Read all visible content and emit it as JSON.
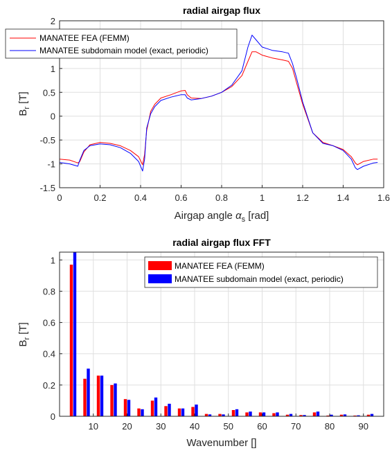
{
  "chart_data": [
    {
      "type": "line",
      "title": "radial airgap flux",
      "xlabel_main": "Airgap angle ",
      "xlabel_symbol": "α",
      "xlabel_sub": "s",
      "xlabel_unit": " [rad]",
      "ylabel_main": "B",
      "ylabel_sub": "r",
      "ylabel_unit": " [T]",
      "xlim": [
        0,
        1.6
      ],
      "ylim": [
        -1.5,
        2
      ],
      "xticks": [
        "0",
        "0.2",
        "0.4",
        "0.6",
        "0.8",
        "1",
        "1.2",
        "1.4",
        "1.6"
      ],
      "yticks": [
        "-1.5",
        "-1",
        "-0.5",
        "0",
        "0.5",
        "1",
        "1.5",
        "2"
      ],
      "grid": true,
      "legend_position": "top-left",
      "series": [
        {
          "name": "MANATEE FEA (FEMM)",
          "color": "#ff0000",
          "x": [
            0,
            0.05,
            0.09,
            0.1,
            0.12,
            0.15,
            0.2,
            0.25,
            0.3,
            0.35,
            0.39,
            0.41,
            0.42,
            0.43,
            0.45,
            0.47,
            0.5,
            0.55,
            0.6,
            0.62,
            0.63,
            0.65,
            0.7,
            0.75,
            0.8,
            0.85,
            0.9,
            0.93,
            0.95,
            0.97,
            1.0,
            1.05,
            1.1,
            1.13,
            1.15,
            1.17,
            1.2,
            1.25,
            1.3,
            1.35,
            1.4,
            1.44,
            1.46,
            1.47,
            1.5,
            1.55,
            1.57
          ],
          "y": [
            -0.9,
            -0.92,
            -0.98,
            -0.95,
            -0.75,
            -0.6,
            -0.55,
            -0.57,
            -0.62,
            -0.72,
            -0.85,
            -1.02,
            -0.8,
            -0.3,
            0.1,
            0.25,
            0.38,
            0.45,
            0.53,
            0.54,
            0.45,
            0.38,
            0.37,
            0.42,
            0.5,
            0.62,
            0.85,
            1.15,
            1.35,
            1.35,
            1.28,
            1.22,
            1.18,
            1.15,
            1.0,
            0.7,
            0.25,
            -0.35,
            -0.55,
            -0.62,
            -0.7,
            -0.85,
            -0.98,
            -1.02,
            -0.95,
            -0.9,
            -0.9
          ]
        },
        {
          "name": "MANATEE subdomain model (exact, periodic)",
          "color": "#0000ff",
          "x": [
            0,
            0.05,
            0.09,
            0.1,
            0.12,
            0.15,
            0.2,
            0.25,
            0.3,
            0.35,
            0.39,
            0.41,
            0.42,
            0.43,
            0.45,
            0.47,
            0.5,
            0.55,
            0.6,
            0.62,
            0.63,
            0.65,
            0.7,
            0.75,
            0.8,
            0.85,
            0.9,
            0.93,
            0.95,
            0.97,
            1.0,
            1.05,
            1.1,
            1.13,
            1.15,
            1.17,
            1.2,
            1.25,
            1.3,
            1.35,
            1.4,
            1.44,
            1.46,
            1.47,
            1.5,
            1.55,
            1.57
          ],
          "y": [
            -0.97,
            -1.0,
            -1.05,
            -0.92,
            -0.72,
            -0.62,
            -0.58,
            -0.6,
            -0.66,
            -0.78,
            -0.95,
            -1.15,
            -0.9,
            -0.25,
            0.05,
            0.2,
            0.33,
            0.4,
            0.45,
            0.45,
            0.38,
            0.34,
            0.37,
            0.42,
            0.5,
            0.65,
            0.95,
            1.45,
            1.7,
            1.6,
            1.45,
            1.38,
            1.35,
            1.32,
            1.1,
            0.8,
            0.3,
            -0.35,
            -0.57,
            -0.62,
            -0.72,
            -0.9,
            -1.08,
            -1.12,
            -1.05,
            -0.98,
            -0.97
          ]
        }
      ]
    },
    {
      "type": "bar",
      "title": "radial airgap flux FFT",
      "xlabel": "Wavenumber []",
      "ylabel_main": "B",
      "ylabel_sub": "r",
      "ylabel_unit": " [T]",
      "xlim": [
        0,
        96
      ],
      "ylim": [
        0,
        1.05
      ],
      "xticks": [
        "10",
        "20",
        "30",
        "40",
        "50",
        "60",
        "70",
        "80",
        "90"
      ],
      "yticks": [
        "0",
        "0.2",
        "0.4",
        "0.6",
        "0.8",
        "1"
      ],
      "grid": true,
      "legend_position": "top-right",
      "categories": [
        4,
        8,
        12,
        16,
        20,
        24,
        28,
        32,
        36,
        40,
        44,
        48,
        52,
        56,
        60,
        64,
        68,
        72,
        76,
        80,
        84,
        88,
        92
      ],
      "series": [
        {
          "name": "MANATEE FEA (FEMM)",
          "color": "#ff0000",
          "values": [
            0.97,
            0.24,
            0.26,
            0.2,
            0.11,
            0.05,
            0.1,
            0.065,
            0.05,
            0.06,
            0.015,
            0.015,
            0.04,
            0.025,
            0.025,
            0.02,
            0.01,
            0.008,
            0.025,
            0.005,
            0.01,
            0.005,
            0.01
          ]
        },
        {
          "name": "MANATEE subdomain model (exact, periodic)",
          "color": "#0000ff",
          "values": [
            1.06,
            0.305,
            0.26,
            0.21,
            0.105,
            0.045,
            0.12,
            0.08,
            0.05,
            0.075,
            0.012,
            0.012,
            0.045,
            0.03,
            0.025,
            0.025,
            0.015,
            0.008,
            0.03,
            0.01,
            0.012,
            0.006,
            0.015
          ]
        }
      ]
    }
  ]
}
